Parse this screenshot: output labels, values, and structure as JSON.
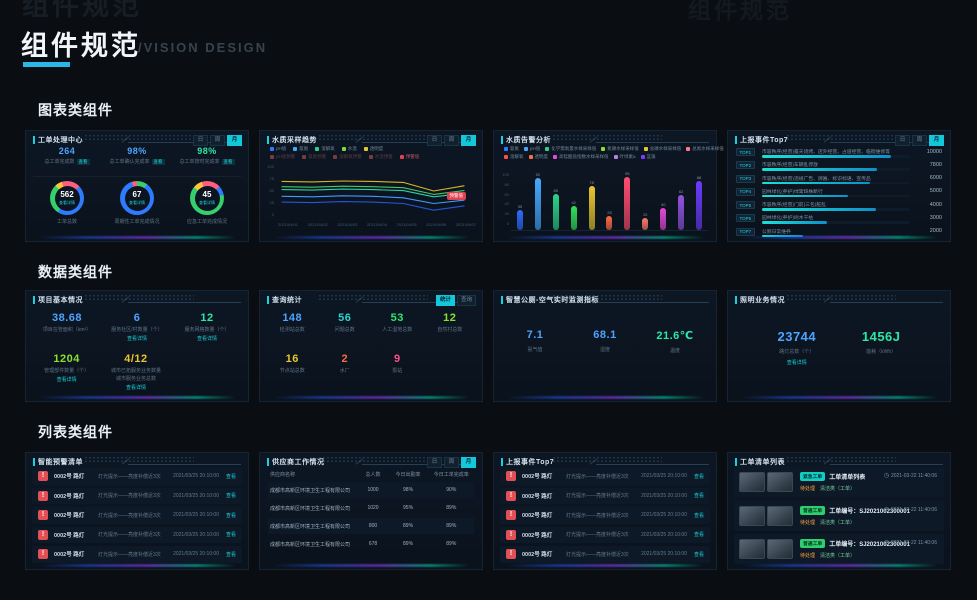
{
  "header": {
    "title": "组件规范",
    "subtitle": "/VISION DESIGN"
  },
  "sections": {
    "charts": "图表类组件",
    "data": "数据类组件",
    "lists": "列表类组件"
  },
  "toggles": [
    "日",
    "周",
    "月"
  ],
  "cards": {
    "workorder_center": {
      "title": "工单处理中心",
      "stats": [
        {
          "value": "264",
          "color": "#4da3ff",
          "label": "总工单完成数",
          "chip": "查看"
        },
        {
          "value": "98%",
          "color": "#4da3ff",
          "label": "总工单确认完成率",
          "chip": "查看"
        },
        {
          "value": "98%",
          "color": "#2ee6a6",
          "label": "总工单按时完成率",
          "chip": "查看"
        }
      ],
      "donuts": [
        {
          "value": "562",
          "link": "查看详情",
          "label": "工单总数",
          "segments": [
            [
              "#ff5f7e",
              13
            ],
            [
              "#2e7bff",
              46
            ],
            [
              "#35d06b",
              29
            ],
            [
              "#ffc53d",
              7
            ],
            [
              "#ff5f7e",
              5
            ]
          ]
        },
        {
          "value": "67",
          "link": "查看详情",
          "label": "周期性工单完成情况",
          "segments": [
            [
              "#35d06b",
              10
            ],
            [
              "#2e7bff",
              85
            ],
            [
              "#ff5f7e",
              5
            ]
          ]
        },
        {
          "value": "45",
          "link": "查看详情",
          "label": "应急工单完成情况",
          "segments": [
            [
              "#ff5f7e",
              13
            ],
            [
              "#2e7bff",
              9
            ],
            [
              "#35d06b",
              64
            ],
            [
              "#ffc53d",
              9
            ],
            [
              "#ff5f7e",
              5
            ]
          ]
        }
      ]
    },
    "water_trend": {
      "title": "水质采样趋势",
      "legend_rows": [
        [
          {
            "label": "pH值",
            "color": "#2e7bff",
            "labelColor": "#6e8496"
          },
          {
            "label": "氨氮",
            "color": "#45a8ff",
            "labelColor": "#6e8496"
          },
          {
            "label": "溶解氧",
            "color": "#2bd38a",
            "labelColor": "#6e8496"
          },
          {
            "label": "水温",
            "color": "#7ddc35",
            "labelColor": "#6e8496"
          },
          {
            "label": "透明度",
            "color": "#e8c62e",
            "labelColor": "#6e8496"
          }
        ],
        [
          {
            "label": "pH值预警",
            "color": "#7a3a42",
            "labelColor": "#5a3a42"
          },
          {
            "label": "氨氮预警",
            "color": "#7a3a42",
            "labelColor": "#5a3a42"
          },
          {
            "label": "溶解氧预警",
            "color": "#7a3a42",
            "labelColor": "#5a3a42"
          },
          {
            "label": "水温预警",
            "color": "#7a3a42",
            "labelColor": "#5a3a42"
          },
          {
            "label": "预警值",
            "color": "#e2414e",
            "labelColor": "#c05560"
          }
        ]
      ],
      "tooltip": "预警值",
      "yticks": [
        "100",
        "75",
        "50",
        "25",
        "0"
      ],
      "x": [
        "2021/04/01",
        "2021/04/02",
        "2021/04/03",
        "2021/04/04",
        "2021/04/05",
        "2021/04/06",
        "2021/04/07"
      ],
      "series": [
        {
          "name": "透明度",
          "color": "#d9b625",
          "values": [
            72,
            71,
            73,
            72,
            70,
            52,
            63
          ]
        },
        {
          "name": "水温",
          "color": "#49c466",
          "values": [
            61,
            60,
            62,
            61,
            59,
            45,
            53
          ]
        },
        {
          "name": "溶解氧",
          "color": "#2bd3a0",
          "values": [
            55,
            54,
            56,
            55,
            53,
            40,
            47
          ]
        },
        {
          "name": "氨氮",
          "color": "#3f9bff",
          "values": [
            41,
            40,
            42,
            41,
            38,
            26,
            33
          ]
        },
        {
          "name": "pH值",
          "color": "#2456d6",
          "values": [
            29,
            28,
            30,
            29,
            26,
            12,
            21
          ]
        }
      ]
    },
    "water_alarm": {
      "title": "水质告警分析",
      "legend_rows": [
        [
          {
            "label": "氨氮",
            "color": "#2e7bff",
            "labelColor": "#6e8496"
          },
          {
            "label": "pH值",
            "color": "#45a8ff",
            "labelColor": "#6e8496"
          },
          {
            "label": "化学需氧量水样采样值",
            "color": "#2bd38a",
            "labelColor": "#6e8496"
          },
          {
            "label": "氮磷水样采样值",
            "color": "#8ae02e",
            "labelColor": "#6e8496"
          },
          {
            "label": "总磷水样采样值",
            "color": "#e8c62e",
            "labelColor": "#6e8496"
          },
          {
            "label": "总氮水样采样值",
            "color": "#ff7a8a",
            "labelColor": "#6e8496"
          }
        ],
        [
          {
            "label": "溶解氧",
            "color": "#ff4d4f",
            "labelColor": "#6e8496"
          },
          {
            "label": "透明度",
            "color": "#ff6b45",
            "labelColor": "#6e8496"
          },
          {
            "label": "高锰酸盐指数水样采样值",
            "color": "#e649d8",
            "labelColor": "#6e8496"
          },
          {
            "label": "叶绿素a",
            "color": "#b37feb",
            "labelColor": "#6e8496"
          },
          {
            "label": "蓝藻",
            "color": "#7a3bff",
            "labelColor": "#6e8496"
          }
        ]
      ],
      "yticks": [
        "100",
        "80",
        "60",
        "40",
        "20",
        "0"
      ],
      "bars": [
        {
          "v": 35,
          "color": "#2f6bff"
        },
        {
          "v": 92,
          "color": "#45a8ff"
        },
        {
          "v": 65,
          "color": "#2bd38a"
        },
        {
          "v": 42,
          "color": "#35e05c"
        },
        {
          "v": 78,
          "color": "#e8c62e"
        },
        {
          "v": 25,
          "color": "#ff6b45"
        },
        {
          "v": 95,
          "color": "#ff4d6e"
        },
        {
          "v": 22,
          "color": "#ff7a6b"
        },
        {
          "v": 40,
          "color": "#e649d8"
        },
        {
          "v": 62,
          "color": "#9254de"
        },
        {
          "v": 88,
          "color": "#6b3bff"
        }
      ]
    },
    "events_top7": {
      "title": "上报事件Top7",
      "rows": [
        {
          "rank": "TOP1",
          "label": "市容秩序(经营)露天烧烤、店外经营、占道经营、临街维修等",
          "value": "10000",
          "pct": 87
        },
        {
          "rank": "TOP2",
          "label": "市容秩序(经营)车辆乱停放",
          "value": "7800",
          "pct": 78
        },
        {
          "rank": "TOP3",
          "label": "市容秩序(经营)违规广告、牌匾、标识标语、宣传品",
          "value": "6000",
          "pct": 73
        },
        {
          "rank": "TOP4",
          "label": "园林绿化(养护)绿篱缺株断行",
          "value": "5000",
          "pct": 58
        },
        {
          "rank": "TOP5",
          "label": "市容秩序(经营)门前(三包)脏乱",
          "value": "4000",
          "pct": 77
        },
        {
          "rank": "TOP6",
          "label": "园林绿化(养护)树木干枯",
          "value": "3000",
          "pct": 44
        },
        {
          "rank": "TOP7",
          "label": "公厕日常维养",
          "value": "2000",
          "pct": 28
        }
      ]
    },
    "project_basic": {
      "title": "项目基本情况",
      "rows": [
        [
          {
            "value": "38.68",
            "color": "#4da3ff",
            "label": "项目在管面积（km²）"
          },
          {
            "value": "6",
            "color": "#4da3ff",
            "label": "服务社区/村数量（个）",
            "link": "查看详情"
          },
          {
            "value": "12",
            "color": "#2ee6a6",
            "label": "服务网格数量（个）",
            "link": "查看详情"
          }
        ],
        [
          {
            "value": "1204",
            "color": "#8ae02e",
            "label": "管理部件数量（个）",
            "link": "查看详情"
          },
          {
            "value": "4/12",
            "color": "#e8c62e",
            "label": "城市已拓服务业务数量",
            "label2": "城市服务业务总数",
            "link": "查看详情"
          }
        ]
      ]
    },
    "query_stats": {
      "title": "查询统计",
      "buttons": [
        "统计",
        "查询"
      ],
      "rows": [
        [
          {
            "value": "148",
            "color": "#4da3ff",
            "label": "检测站总数"
          },
          {
            "value": "56",
            "color": "#2bd3c9",
            "label": "问题总数"
          },
          {
            "value": "53",
            "color": "#2ee66b",
            "label": "人工湿地总数"
          },
          {
            "value": "12",
            "color": "#8ae02e",
            "label": "自然村总数"
          }
        ],
        [
          {
            "value": "16",
            "color": "#e8c62e",
            "label": "节点站总数"
          },
          {
            "value": "2",
            "color": "#ff6b45",
            "label": "水厂"
          },
          {
            "value": "9",
            "color": "#ff4d8a",
            "label": "泵站"
          }
        ]
      ]
    },
    "toilet_air": {
      "title": "智慧公厕-空气实时监测指标",
      "stats": [
        {
          "value": "7.1",
          "color": "#4da3ff",
          "label": "氨气值"
        },
        {
          "value": "68.1",
          "color": "#4da3ff",
          "label": "湿度"
        },
        {
          "value": "21.6℃",
          "color": "#2ee6a6",
          "label": "温度"
        }
      ]
    },
    "lighting": {
      "title": "照明业务情况",
      "stats": [
        {
          "value": "23744",
          "color": "#4da3ff",
          "label": "路灯总数（个）",
          "link": "查看详情"
        },
        {
          "value": "1456J",
          "color": "#2ee6a6",
          "label": "能耗（kWh）"
        }
      ]
    },
    "warning_list": {
      "title": "智能预警清单",
      "rows": [
        {
          "name": "0002号 路灯",
          "desc": "灯光提示——亮度补偿近3次",
          "time": "2021/03/25 20:10:00",
          "link": "查看"
        },
        {
          "name": "0002号 路灯",
          "desc": "灯光提示——亮度补偿近3次",
          "time": "2021/03/25 20:10:00",
          "link": "查看"
        },
        {
          "name": "0002号 路灯",
          "desc": "灯光提示——亮度补偿近3次",
          "time": "2021/03/25 20:10:00",
          "link": "查看"
        },
        {
          "name": "0002号 路灯",
          "desc": "灯光提示——亮度补偿近3次",
          "time": "2021/03/25 20:10:00",
          "link": "查看"
        },
        {
          "name": "0002号 路灯",
          "desc": "灯光提示——亮度补偿近3次",
          "time": "2021/03/25 20:10:00",
          "link": "查看"
        }
      ]
    },
    "supplier": {
      "title": "供应商工作情况",
      "headers": [
        "供应商名称",
        "总人数",
        "今日出勤率",
        "今日工单完成率"
      ],
      "rows": [
        {
          "name": "成都市高新区环境卫生工程有限公司",
          "total": "1000",
          "attendance": "98%",
          "completion": "90%"
        },
        {
          "name": "成都市高新区环境卫生工程有限公司",
          "total": "1020",
          "attendance": "95%",
          "completion": "89%"
        },
        {
          "name": "成都市高新区环境卫生工程有限公司",
          "total": "800",
          "attendance": "89%",
          "completion": "89%"
        },
        {
          "name": "成都市高新区环境卫生工程有限公司",
          "total": "678",
          "attendance": "89%",
          "completion": "89%"
        }
      ]
    },
    "report_list": {
      "title": "上报事件Top7",
      "rows": [
        {
          "name": "0002号 路灯",
          "desc": "灯光提示——亮度补偿近3次",
          "time": "2021/03/25 20:10:00",
          "link": "查看"
        },
        {
          "name": "0002号 路灯",
          "desc": "灯光提示——亮度补偿近3次",
          "time": "2021/03/25 20:10:00",
          "link": "查看"
        },
        {
          "name": "0002号 路灯",
          "desc": "灯光提示——亮度补偿近3次",
          "time": "2021/03/25 20:10:00",
          "link": "查看"
        },
        {
          "name": "0002号 路灯",
          "desc": "灯光提示——亮度补偿近3次",
          "time": "2021/03/25 20:10:00",
          "link": "查看"
        },
        {
          "name": "0002号 路灯",
          "desc": "灯光提示——亮度补偿近3次",
          "time": "2021/03/25 20:10:00",
          "link": "查看"
        }
      ]
    },
    "workorder_list": {
      "title": "工单清单列表",
      "rows": [
        {
          "badge": "紧急工单",
          "badgeBg": "#10cfc2",
          "badgeFg": "#032c2e",
          "title": "工单清单列表",
          "status": "待处理",
          "type": "清洁类（工单）",
          "time": "2021-03-22 11:40:06"
        },
        {
          "badge": "普通工单",
          "badgeBg": "#2fcf6f",
          "badgeFg": "#06351a",
          "title": "工单编号：SJ2021002300001",
          "status": "待处理",
          "type": "清洁类（工单）",
          "time": "2021-03-22 11:40:06"
        },
        {
          "badge": "普通工单",
          "badgeBg": "#2fcf6f",
          "badgeFg": "#06351a",
          "title": "工单编号：SJ2021002300001",
          "status": "待处理",
          "type": "清洁类（工单）",
          "time": "2021-03-22 11:40:06"
        }
      ]
    }
  }
}
